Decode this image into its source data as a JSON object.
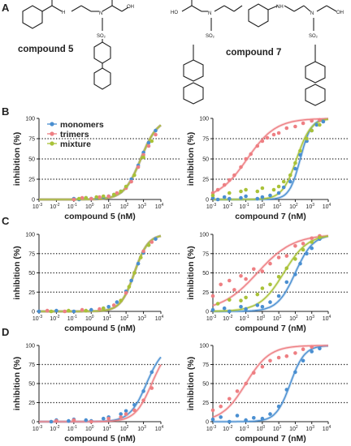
{
  "panel_letters": {
    "A": "A",
    "B": "B",
    "C": "C",
    "D": "D"
  },
  "structures": {
    "compound_5_label": "compound 5",
    "compound_7_label": "compound 7",
    "atoms": {
      "N": "N",
      "H": "H",
      "O": "O",
      "OH": "OH",
      "HO": "HO",
      "NH": "NH",
      "SO2": "SO₂"
    }
  },
  "colors": {
    "monomers": "#4a8fd1",
    "trimers": "#ee7f83",
    "mixture": "#a9c238"
  },
  "axis": {
    "y_label": "inhibition (%)",
    "y_ticks": [
      "0",
      "25",
      "50",
      "75",
      "100"
    ],
    "x_tick_base": "10",
    "x_tick_exponents": [
      "-3",
      "-2",
      "-1",
      "0",
      "1",
      "2",
      "3",
      "4"
    ]
  },
  "chart_data": [
    {
      "panel": "B",
      "type": "scatter",
      "xlabel": "compound 5 (nM)",
      "ylabel": "inhibition (%)",
      "x_scale": "log",
      "xlim": [
        0.001,
        10000
      ],
      "ylim": [
        0,
        100
      ],
      "reference_lines_y": [
        25,
        50,
        75
      ],
      "legend": {
        "position": "top-left",
        "entries": [
          "monomers",
          "trimers",
          "mixture"
        ]
      },
      "series": [
        {
          "name": "monomers",
          "color": "#4a8fd1",
          "ic50_nM": 700,
          "hill": 0.9,
          "top": 100,
          "x": [
            0.1,
            0.2,
            0.5,
            1,
            2,
            5,
            10,
            20,
            50,
            100,
            200,
            500,
            1000,
            2000,
            5000
          ],
          "y": [
            1,
            0,
            2,
            1,
            2,
            3,
            4,
            6,
            10,
            15,
            25,
            42,
            58,
            70,
            85
          ]
        },
        {
          "name": "trimers",
          "color": "#ee7f83",
          "ic50_nM": 700,
          "hill": 0.9,
          "top": 100,
          "x": [
            0.1,
            0.3,
            1,
            3,
            10,
            30,
            100,
            200,
            500,
            1000,
            2000,
            5000
          ],
          "y": [
            0,
            2,
            1,
            3,
            4,
            8,
            14,
            22,
            40,
            55,
            66,
            80
          ]
        },
        {
          "name": "mixture",
          "color": "#a9c238",
          "ic50_nM": 700,
          "hill": 0.9,
          "top": 100,
          "x": [
            0.2,
            0.5,
            2,
            5,
            20,
            50,
            100,
            300,
            1000,
            3000
          ],
          "y": [
            1,
            2,
            3,
            4,
            6,
            10,
            16,
            30,
            52,
            72
          ]
        }
      ]
    },
    {
      "panel": "B",
      "type": "scatter",
      "xlabel": "compound 7 (nM)",
      "ylabel": "inhibition (%)",
      "x_scale": "log",
      "xlim": [
        0.001,
        10000
      ],
      "ylim": [
        0,
        100
      ],
      "reference_lines_y": [
        25,
        50,
        75
      ],
      "series": [
        {
          "name": "monomers",
          "color": "#4a8fd1",
          "ic50_nM": 200,
          "hill": 1.3,
          "top": 100,
          "x": [
            0.001,
            0.002,
            0.005,
            0.01,
            0.05,
            0.1,
            0.5,
            1,
            3,
            10,
            20,
            50,
            100,
            200,
            500,
            1000,
            2000,
            5000
          ],
          "y": [
            2,
            0,
            3,
            1,
            2,
            4,
            1,
            3,
            5,
            8,
            15,
            22,
            38,
            55,
            72,
            85,
            92,
            96
          ]
        },
        {
          "name": "trimers",
          "color": "#ee7f83",
          "ic50_nM": 0.12,
          "hill": 0.5,
          "top": 100,
          "x": [
            0.001,
            0.002,
            0.005,
            0.01,
            0.02,
            0.05,
            0.1,
            0.2,
            0.5,
            1,
            2,
            5,
            10,
            30,
            100,
            300,
            1000,
            3000
          ],
          "y": [
            8,
            12,
            18,
            24,
            30,
            40,
            50,
            56,
            66,
            72,
            76,
            80,
            82,
            88,
            90,
            94,
            97,
            98
          ]
        },
        {
          "name": "mixture",
          "color": "#a9c238",
          "ic50_nM": 120,
          "hill": 1.0,
          "top": 100,
          "x": [
            0.001,
            0.01,
            0.05,
            0.1,
            0.5,
            1,
            5,
            10,
            20,
            50,
            100,
            200,
            500,
            1000,
            3000
          ],
          "y": [
            5,
            8,
            10,
            12,
            10,
            14,
            12,
            16,
            22,
            30,
            45,
            60,
            75,
            85,
            92
          ]
        }
      ]
    },
    {
      "panel": "C",
      "type": "scatter",
      "xlabel": "compound 5 (nM)",
      "ylabel": "inhibition (%)",
      "x_scale": "log",
      "xlim": [
        0.001,
        10000
      ],
      "ylim": [
        0,
        100
      ],
      "reference_lines_y": [
        25,
        50,
        75
      ],
      "series": [
        {
          "name": "monomers",
          "color": "#4a8fd1",
          "ic50_nM": 300,
          "hill": 1.1,
          "top": 100,
          "x": [
            0.001,
            0.01,
            0.1,
            1,
            5,
            10,
            30,
            100,
            200,
            500,
            1000,
            2000,
            5000
          ],
          "y": [
            0,
            1,
            0,
            2,
            4,
            6,
            12,
            26,
            40,
            62,
            76,
            86,
            94
          ]
        },
        {
          "name": "trimers",
          "color": "#ee7f83",
          "ic50_nM": 300,
          "hill": 1.1,
          "top": 100,
          "x": [
            0.003,
            0.03,
            0.3,
            3,
            20,
            50,
            100,
            300,
            1000,
            3000
          ],
          "y": [
            1,
            0,
            2,
            3,
            8,
            14,
            24,
            50,
            78,
            90
          ]
        },
        {
          "name": "mixture",
          "color": "#a9c238",
          "ic50_nM": 300,
          "hill": 1.1,
          "top": 100,
          "x": [
            0.005,
            0.05,
            0.5,
            5,
            50,
            150,
            300,
            700,
            2000
          ],
          "y": [
            0,
            1,
            1,
            4,
            14,
            32,
            50,
            70,
            86
          ]
        }
      ]
    },
    {
      "panel": "C",
      "type": "scatter",
      "xlabel": "compound 7 (nM)",
      "ylabel": "inhibition (%)",
      "x_scale": "log",
      "xlim": [
        0.001,
        10000
      ],
      "ylim": [
        0,
        100
      ],
      "reference_lines_y": [
        25,
        50,
        75
      ],
      "series": [
        {
          "name": "monomers",
          "color": "#4a8fd1",
          "ic50_nM": 100,
          "hill": 0.8,
          "top": 100,
          "x": [
            0.001,
            0.005,
            0.01,
            0.05,
            0.1,
            0.5,
            1,
            3,
            10,
            30,
            100,
            200,
            500,
            1000,
            3000
          ],
          "y": [
            2,
            4,
            0,
            6,
            3,
            8,
            6,
            12,
            20,
            38,
            48,
            62,
            75,
            82,
            94
          ]
        },
        {
          "name": "trimers",
          "color": "#ee7f83",
          "ic50_nM": 0.5,
          "hill": 0.4,
          "top": 100,
          "x": [
            0.001,
            0.003,
            0.01,
            0.02,
            0.05,
            0.1,
            0.3,
            1,
            3,
            10,
            30,
            100,
            300,
            1000,
            3000
          ],
          "y": [
            20,
            35,
            40,
            28,
            46,
            42,
            55,
            52,
            62,
            70,
            72,
            85,
            88,
            95,
            98
          ]
        },
        {
          "name": "mixture",
          "color": "#a9c238",
          "ic50_nM": 20,
          "hill": 0.6,
          "top": 100,
          "x": [
            0.002,
            0.01,
            0.05,
            0.1,
            0.5,
            1,
            3,
            10,
            30,
            100,
            300,
            1000,
            3000
          ],
          "y": [
            10,
            15,
            14,
            18,
            22,
            30,
            35,
            45,
            56,
            68,
            80,
            90,
            96
          ]
        }
      ]
    },
    {
      "panel": "D",
      "type": "scatter",
      "xlabel": "compound 5 (nM)",
      "ylabel": "inhibition (%)",
      "x_scale": "log",
      "xlim": [
        0.001,
        10000
      ],
      "ylim": [
        0,
        100
      ],
      "reference_lines_y": [
        25,
        50,
        75
      ],
      "series": [
        {
          "name": "monomers",
          "color": "#4a8fd1",
          "ic50_nM": 1500,
          "hill": 0.9,
          "top": 100,
          "x": [
            0.005,
            0.01,
            0.05,
            0.1,
            0.5,
            1,
            5,
            10,
            50,
            100,
            300,
            1000,
            3000
          ],
          "y": [
            0,
            2,
            1,
            3,
            2,
            1,
            4,
            6,
            10,
            14,
            22,
            40,
            65
          ]
        },
        {
          "name": "trimers",
          "color": "#ee7f83",
          "ic50_nM": 3000,
          "hill": 0.9,
          "top": 100,
          "x": [
            0.01,
            0.1,
            1,
            10,
            50,
            100,
            300,
            1000,
            3000
          ],
          "y": [
            1,
            2,
            0,
            4,
            6,
            10,
            15,
            28,
            44
          ]
        }
      ]
    },
    {
      "panel": "D",
      "type": "scatter",
      "xlabel": "compound 7 (nM)",
      "ylabel": "inhibition (%)",
      "x_scale": "log",
      "xlim": [
        0.001,
        10000
      ],
      "ylim": [
        0,
        100
      ],
      "reference_lines_y": [
        25,
        50,
        75
      ],
      "series": [
        {
          "name": "monomers",
          "color": "#4a8fd1",
          "ic50_nM": 50,
          "hill": 1.0,
          "top": 100,
          "x": [
            0.001,
            0.003,
            0.01,
            0.03,
            0.1,
            0.3,
            1,
            3,
            10,
            30,
            100,
            300,
            1000,
            3000
          ],
          "y": [
            3,
            6,
            0,
            8,
            2,
            5,
            4,
            10,
            20,
            42,
            65,
            80,
            92,
            96
          ]
        },
        {
          "name": "trimers",
          "color": "#ee7f83",
          "ic50_nM": 0.1,
          "hill": 0.6,
          "top": 100,
          "x": [
            0.001,
            0.003,
            0.01,
            0.03,
            0.1,
            0.3,
            1,
            3,
            10,
            30,
            100,
            300,
            1000
          ],
          "y": [
            15,
            20,
            30,
            40,
            50,
            64,
            72,
            80,
            84,
            86,
            90,
            95,
            98
          ]
        }
      ]
    }
  ]
}
